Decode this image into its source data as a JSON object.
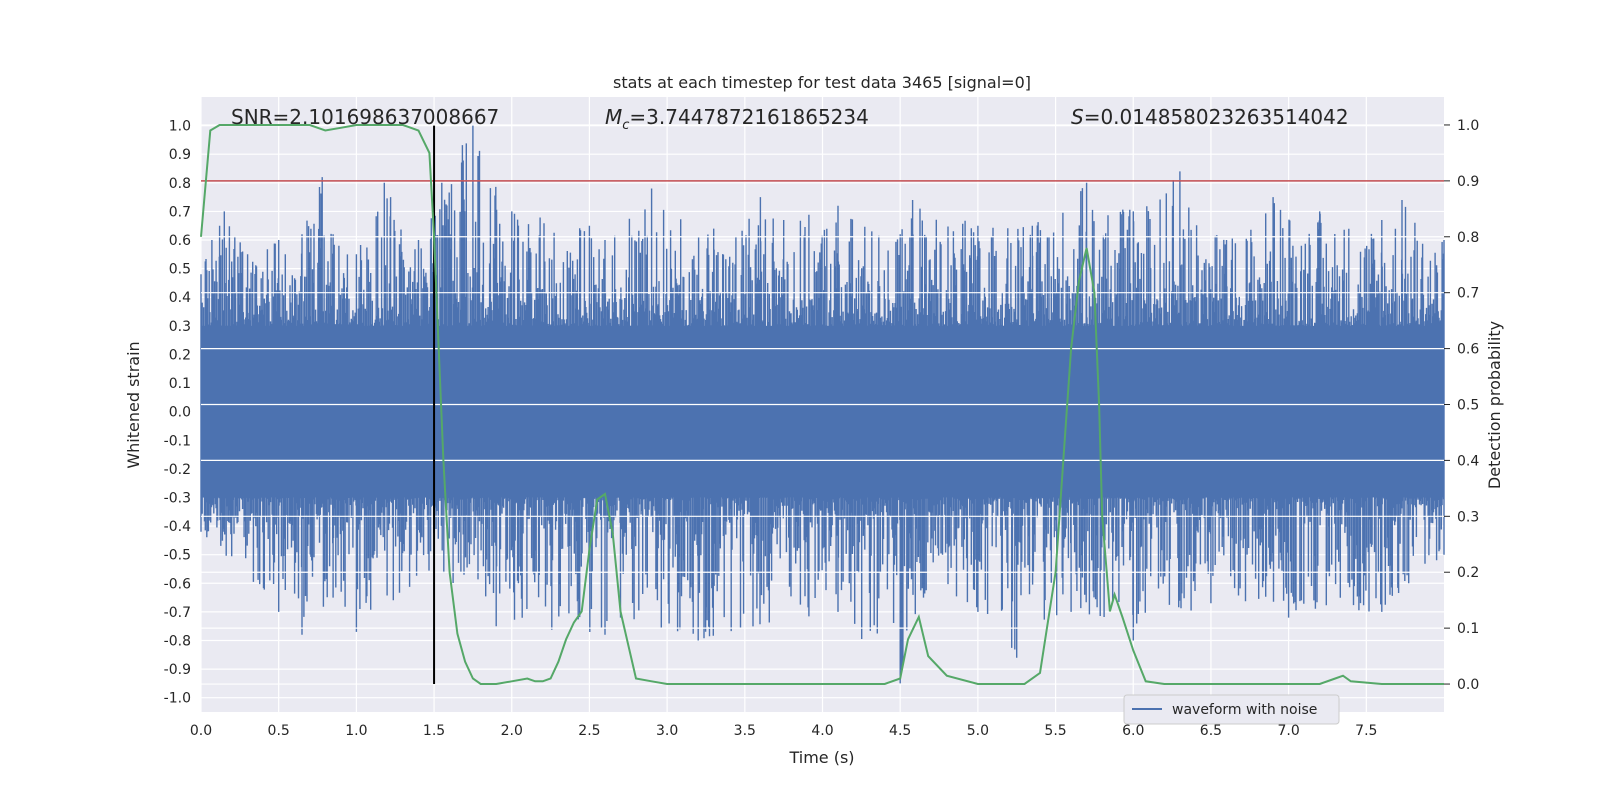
{
  "chart_data": {
    "type": "line",
    "title": "stats at each timestep for test data 3465 [signal=0]",
    "xlabel": "Time (s)",
    "ylabel_left": "Whitened strain",
    "ylabel_right": "Detection probability",
    "xlim": [
      0.0,
      8.0
    ],
    "ylim_left": [
      -1.05,
      1.1
    ],
    "ylim_right": [
      -0.05,
      1.05
    ],
    "x_ticks": [
      "0.0",
      "0.5",
      "1.0",
      "1.5",
      "2.0",
      "2.5",
      "3.0",
      "3.5",
      "4.0",
      "4.5",
      "5.0",
      "5.5",
      "6.0",
      "6.5",
      "7.0",
      "7.5"
    ],
    "left_ticks": [
      "1.0",
      "0.9",
      "0.8",
      "0.7",
      "0.6",
      "0.5",
      "0.4",
      "0.3",
      "0.2",
      "0.1",
      "0.0",
      "-0.1",
      "-0.2",
      "-0.3",
      "-0.4",
      "-0.5",
      "-0.6",
      "-0.7",
      "-0.8",
      "-0.9",
      "-1.0"
    ],
    "right_ticks": [
      "1.0",
      "0.9",
      "0.8",
      "0.7",
      "0.6",
      "0.5",
      "0.4",
      "0.3",
      "0.2",
      "0.1",
      "0.0"
    ],
    "grid": true,
    "legend_position": "lower-right",
    "annotations": {
      "snr": "SNR=2.101698637008667",
      "mc_symbol": "M",
      "mc_sub": "c",
      "mc_value": "=3.7447872161865234",
      "s_symbol": "S",
      "s_value": "=0.014858023263514042"
    },
    "threshold": {
      "value": 0.9,
      "axis": "right",
      "color": "#c44e52"
    },
    "marker_time": {
      "value": 1.5,
      "color": "#000000"
    },
    "series": [
      {
        "name": "waveform with noise",
        "axis": "left",
        "color": "#4c72b0",
        "style": "dense-noise",
        "envelope_top": [
          [
            0.0,
            0.48
          ],
          [
            0.07,
            0.6
          ],
          [
            0.12,
            0.65
          ],
          [
            0.15,
            0.7
          ],
          [
            0.3,
            0.55
          ],
          [
            0.5,
            0.6
          ],
          [
            0.65,
            0.62
          ],
          [
            0.78,
            0.82
          ],
          [
            0.85,
            0.62
          ],
          [
            1.0,
            0.55
          ],
          [
            1.18,
            0.8
          ],
          [
            1.22,
            0.75
          ],
          [
            1.4,
            0.6
          ],
          [
            1.55,
            0.8
          ],
          [
            1.75,
            1.0
          ],
          [
            2.0,
            0.7
          ],
          [
            2.5,
            0.65
          ],
          [
            2.6,
            0.6
          ],
          [
            2.9,
            0.78
          ],
          [
            3.3,
            0.64
          ],
          [
            3.6,
            0.75
          ],
          [
            3.75,
            0.67
          ],
          [
            4.1,
            0.72
          ],
          [
            4.5,
            0.62
          ],
          [
            4.58,
            0.74
          ],
          [
            5.0,
            0.65
          ],
          [
            5.35,
            0.65
          ],
          [
            5.7,
            0.8
          ],
          [
            6.0,
            0.7
          ],
          [
            6.3,
            0.84
          ],
          [
            6.6,
            0.6
          ],
          [
            6.9,
            0.75
          ],
          [
            7.2,
            0.7
          ],
          [
            7.6,
            0.67
          ],
          [
            7.73,
            0.74
          ],
          [
            8.0,
            0.6
          ]
        ],
        "envelope_bottom": [
          [
            0.0,
            -0.42
          ],
          [
            0.5,
            -0.7
          ],
          [
            0.65,
            -0.78
          ],
          [
            0.85,
            -0.65
          ],
          [
            1.0,
            -0.77
          ],
          [
            1.5,
            -0.55
          ],
          [
            1.9,
            -0.75
          ],
          [
            2.6,
            -0.78
          ],
          [
            2.7,
            -0.72
          ],
          [
            3.2,
            -0.8
          ],
          [
            4.1,
            -0.7
          ],
          [
            4.5,
            -0.95
          ],
          [
            4.65,
            -0.65
          ],
          [
            5.0,
            -0.7
          ],
          [
            5.25,
            -0.86
          ],
          [
            5.6,
            -0.7
          ],
          [
            6.0,
            -0.8
          ],
          [
            6.5,
            -0.67
          ],
          [
            7.0,
            -0.72
          ],
          [
            7.6,
            -0.7
          ],
          [
            8.0,
            -0.5
          ]
        ]
      },
      {
        "name": "",
        "axis": "right",
        "color": "#55a868",
        "x": [
          0.0,
          0.06,
          0.12,
          0.2,
          0.3,
          0.4,
          0.5,
          0.6,
          0.7,
          0.8,
          0.9,
          1.0,
          1.1,
          1.2,
          1.3,
          1.4,
          1.47,
          1.5,
          1.53,
          1.56,
          1.6,
          1.65,
          1.7,
          1.75,
          1.8,
          1.9,
          2.0,
          2.1,
          2.15,
          2.2,
          2.25,
          2.3,
          2.35,
          2.4,
          2.45,
          2.5,
          2.55,
          2.6,
          2.65,
          2.7,
          2.8,
          2.9,
          3.0,
          3.2,
          3.5,
          3.8,
          4.0,
          4.2,
          4.4,
          4.5,
          4.55,
          4.62,
          4.68,
          4.8,
          5.0,
          5.2,
          5.3,
          5.4,
          5.5,
          5.55,
          5.6,
          5.65,
          5.7,
          5.75,
          5.78,
          5.8,
          5.85,
          5.88,
          5.93,
          6.0,
          6.08,
          6.2,
          6.5,
          7.0,
          7.2,
          7.3,
          7.35,
          7.4,
          7.6,
          7.8,
          8.0
        ],
        "y": [
          0.8,
          0.99,
          1.0,
          1.0,
          1.0,
          1.0,
          1.0,
          1.0,
          1.0,
          0.99,
          0.995,
          1.0,
          1.0,
          1.0,
          1.0,
          0.99,
          0.95,
          0.8,
          0.6,
          0.4,
          0.2,
          0.09,
          0.04,
          0.01,
          0.0,
          0.0,
          0.005,
          0.01,
          0.005,
          0.005,
          0.01,
          0.04,
          0.08,
          0.11,
          0.13,
          0.24,
          0.33,
          0.34,
          0.27,
          0.13,
          0.01,
          0.005,
          0.0,
          0.0,
          0.0,
          0.0,
          0.0,
          0.0,
          0.0,
          0.01,
          0.08,
          0.12,
          0.05,
          0.015,
          0.0,
          0.0,
          0.0,
          0.02,
          0.2,
          0.4,
          0.6,
          0.72,
          0.78,
          0.7,
          0.5,
          0.3,
          0.13,
          0.16,
          0.12,
          0.06,
          0.005,
          0.0,
          0.0,
          0.0,
          0.0,
          0.01,
          0.015,
          0.005,
          0.0,
          0.0,
          0.0
        ]
      }
    ]
  }
}
